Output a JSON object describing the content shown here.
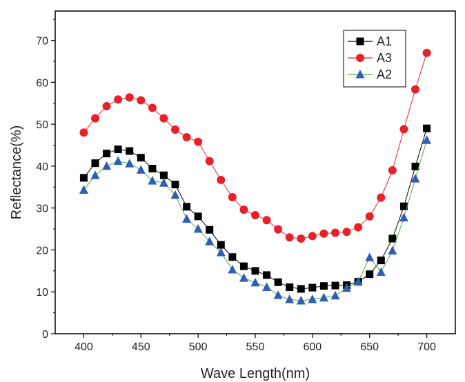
{
  "chart_data": {
    "type": "line",
    "xlabel": "Wave Length(nm)",
    "ylabel": "Reflectance(%)",
    "xlim": [
      375,
      725
    ],
    "ylim": [
      0,
      77
    ],
    "xticks": [
      400,
      450,
      500,
      550,
      600,
      650,
      700
    ],
    "yticks": [
      0,
      10,
      20,
      30,
      40,
      50,
      60,
      70
    ],
    "legend_position": "top-right",
    "grid": false,
    "x": [
      400,
      410,
      420,
      430,
      440,
      450,
      460,
      470,
      480,
      490,
      500,
      510,
      520,
      530,
      540,
      550,
      560,
      570,
      580,
      590,
      600,
      610,
      620,
      630,
      640,
      650,
      660,
      670,
      680,
      690,
      700
    ],
    "series": [
      {
        "name": "A1",
        "color": "#000000",
        "marker": "square",
        "values": [
          37.2,
          40.7,
          43.0,
          44.0,
          43.6,
          42.0,
          39.4,
          37.8,
          35.6,
          30.3,
          28.0,
          24.8,
          21.2,
          18.3,
          16.1,
          15.0,
          14.0,
          12.3,
          11.1,
          10.7,
          11.0,
          11.4,
          11.5,
          11.6,
          12.4,
          14.2,
          17.5,
          22.7,
          30.4,
          39.9,
          49.0
        ]
      },
      {
        "name": "A3",
        "color": "#e8202a",
        "marker": "circle",
        "values": [
          48.0,
          51.4,
          54.3,
          55.9,
          56.4,
          55.7,
          53.9,
          51.4,
          48.7,
          46.9,
          45.8,
          41.2,
          36.7,
          32.6,
          29.6,
          28.3,
          27.1,
          24.9,
          23.0,
          22.7,
          23.3,
          23.9,
          24.1,
          24.3,
          25.4,
          28.0,
          32.5,
          39.0,
          48.8,
          58.3,
          67.0
        ]
      },
      {
        "name": "A2",
        "color": "#2f5fb5",
        "line_color": "#4aaa3c",
        "marker": "triangle",
        "values": [
          34.3,
          37.8,
          40.0,
          41.2,
          40.6,
          39.1,
          36.5,
          36.0,
          33.1,
          27.4,
          25.0,
          22.0,
          19.4,
          15.3,
          13.3,
          12.2,
          11.1,
          9.2,
          8.2,
          7.9,
          8.2,
          8.6,
          9.1,
          10.9,
          12.4,
          18.2,
          14.7,
          19.8,
          27.7,
          37.0,
          46.2
        ]
      }
    ]
  }
}
